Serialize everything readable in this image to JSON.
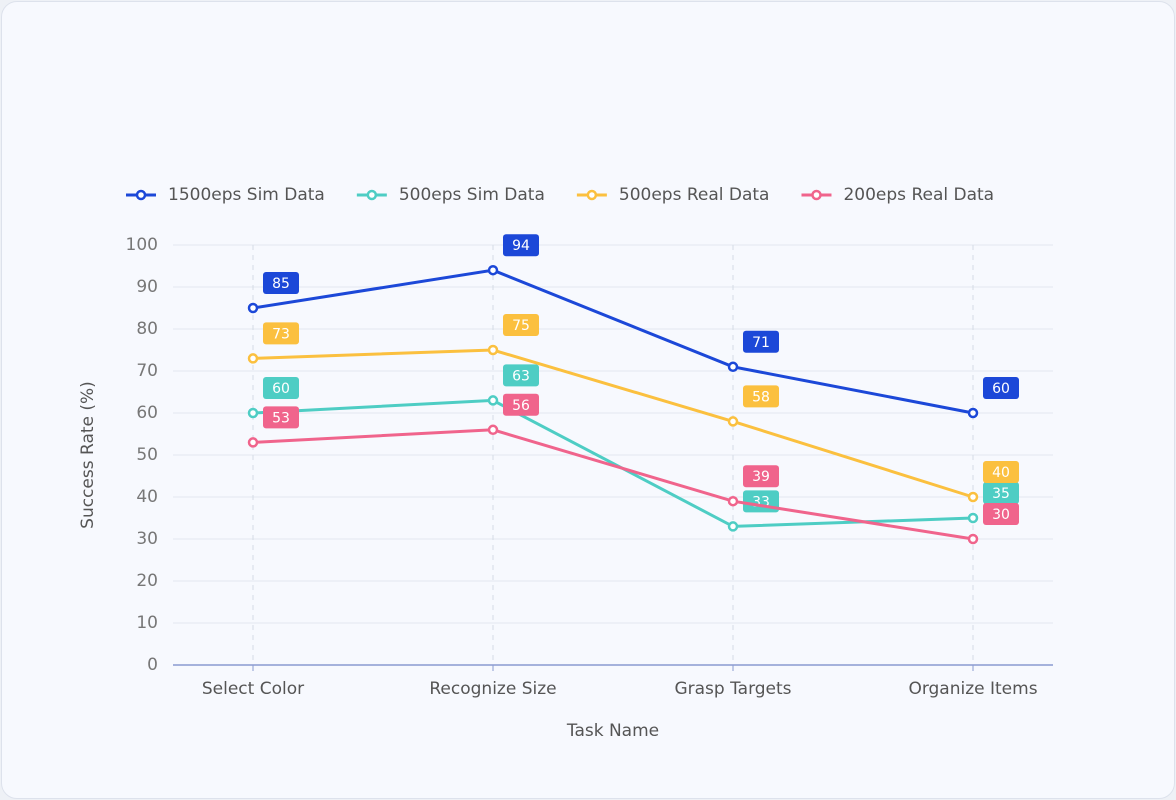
{
  "chart_data": {
    "type": "line",
    "x_label": "Task Name",
    "y_label": "Success Rate (%)",
    "categories": [
      "Select Color",
      "Recognize Size",
      "Grasp Targets",
      "Organize Items"
    ],
    "series": [
      {
        "name": "1500eps Sim Data",
        "color": "#1c48d8",
        "values": [
          85,
          94,
          71,
          60
        ]
      },
      {
        "name": "500eps Sim Data",
        "color": "#4ecdc4",
        "values": [
          60,
          63,
          33,
          35
        ]
      },
      {
        "name": "500eps Real Data",
        "color": "#fbc03f",
        "values": [
          73,
          75,
          58,
          40
        ]
      },
      {
        "name": "200eps Real Data",
        "color": "#f0648c",
        "values": [
          53,
          56,
          39,
          30
        ]
      }
    ],
    "ylim": [
      0,
      100
    ],
    "yticks": [
      0,
      10,
      20,
      30,
      40,
      50,
      60,
      70,
      80,
      90,
      100
    ],
    "grid": true
  }
}
